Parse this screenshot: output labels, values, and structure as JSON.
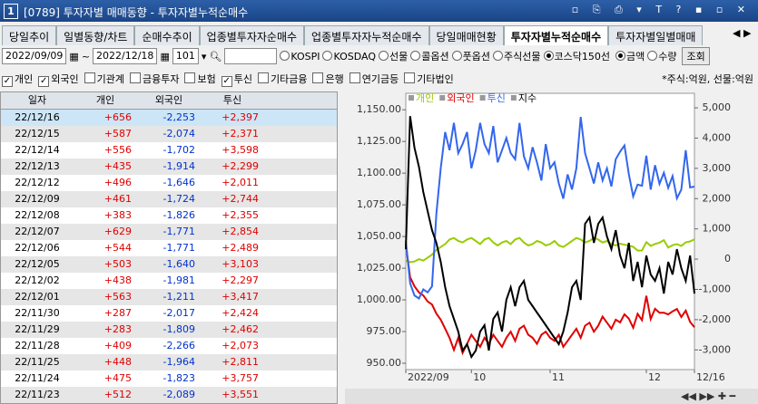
{
  "window": {
    "number": "1",
    "title": "[0789] 투자자별 매매동향 - 투자자별누적순매수"
  },
  "tabs": {
    "items": [
      "당일추이",
      "일별동향/차트",
      "순매수추이",
      "업종별투자자순매수",
      "업종별투자자누적순매수",
      "당일매매현황",
      "투자자별누적순매수",
      "투자자별일별매매"
    ],
    "active": 6
  },
  "controls": {
    "start_date": "2022/09/09",
    "separator": "~",
    "end_date": "2022/12/18",
    "code": "101",
    "markets": [
      "KOSPI",
      "KOSDAQ",
      "선물",
      "콜옵션",
      "풋옵션",
      "주식선물",
      "코스닥150선"
    ],
    "selected_market": 6,
    "units": [
      "금액",
      "수량"
    ],
    "selected_unit": 0,
    "search": "조회"
  },
  "filters": {
    "investors": [
      {
        "label": "개인",
        "checked": true
      },
      {
        "label": "외국인",
        "checked": true
      },
      {
        "label": "기관계",
        "checked": false
      },
      {
        "label": "금융투자",
        "checked": false
      },
      {
        "label": "보험",
        "checked": false
      },
      {
        "label": "투신",
        "checked": true
      },
      {
        "label": "기타금융",
        "checked": false
      },
      {
        "label": "은행",
        "checked": false
      },
      {
        "label": "연기금등",
        "checked": false
      },
      {
        "label": "기타법인",
        "checked": false
      }
    ],
    "note": "*주식:억원, 선물:억원"
  },
  "table": {
    "columns": [
      "일자",
      "개인",
      "외국인",
      "투신"
    ],
    "selected_row": 0,
    "rows": [
      [
        "22/12/16",
        "+656",
        "-2,253",
        "+2,397"
      ],
      [
        "22/12/15",
        "+587",
        "-2,074",
        "+2,371"
      ],
      [
        "22/12/14",
        "+556",
        "-1,702",
        "+3,598"
      ],
      [
        "22/12/13",
        "+435",
        "-1,914",
        "+2,299"
      ],
      [
        "22/12/12",
        "+496",
        "-1,646",
        "+2,011"
      ],
      [
        "22/12/09",
        "+461",
        "-1,724",
        "+2,744"
      ],
      [
        "22/12/08",
        "+383",
        "-1,826",
        "+2,355"
      ],
      [
        "22/12/07",
        "+629",
        "-1,771",
        "+2,854"
      ],
      [
        "22/12/06",
        "+544",
        "-1,771",
        "+2,489"
      ],
      [
        "22/12/05",
        "+503",
        "-1,640",
        "+3,103"
      ],
      [
        "22/12/02",
        "+438",
        "-1,981",
        "+2,297"
      ],
      [
        "22/12/01",
        "+563",
        "-1,211",
        "+3,417"
      ],
      [
        "22/11/30",
        "+287",
        "-2,017",
        "+2,424"
      ],
      [
        "22/11/29",
        "+283",
        "-1,809",
        "+2,462"
      ],
      [
        "22/11/28",
        "+409",
        "-2,266",
        "+2,073"
      ],
      [
        "22/11/25",
        "+448",
        "-1,964",
        "+2,811"
      ],
      [
        "22/11/24",
        "+475",
        "-1,823",
        "+3,757"
      ],
      [
        "22/11/23",
        "+512",
        "-2,089",
        "+3,551"
      ]
    ]
  },
  "chart_data": {
    "type": "line",
    "legend": "top-left",
    "grid": false,
    "categories": [
      "2022/09",
      null,
      null,
      null,
      null,
      null,
      null,
      null,
      null,
      null,
      null,
      null,
      null,
      null,
      null,
      "10",
      null,
      null,
      null,
      null,
      null,
      null,
      null,
      null,
      null,
      null,
      null,
      null,
      null,
      null,
      null,
      null,
      null,
      "11",
      null,
      null,
      null,
      null,
      null,
      null,
      null,
      null,
      null,
      null,
      null,
      null,
      null,
      null,
      null,
      null,
      null,
      null,
      null,
      null,
      null,
      "12",
      null,
      null,
      null,
      null,
      null,
      null,
      null,
      null,
      null,
      null,
      "12/16"
    ],
    "series": [
      {
        "name": "개인",
        "color": "#99cc00",
        "axis": "y2",
        "values": [
          -50,
          -100,
          -80,
          0,
          -50,
          50,
          150,
          300,
          400,
          500,
          650,
          700,
          600,
          550,
          650,
          700,
          600,
          500,
          650,
          700,
          550,
          450,
          550,
          600,
          500,
          650,
          700,
          550,
          450,
          500,
          600,
          550,
          450,
          500,
          600,
          450,
          400,
          500,
          600,
          700,
          650,
          550,
          600,
          700,
          650,
          550,
          600,
          500,
          450,
          512,
          475,
          448,
          409,
          283,
          287,
          563,
          438,
          503,
          544,
          629,
          383,
          461,
          496,
          435,
          556,
          587,
          656
        ]
      },
      {
        "name": "외국인",
        "color": "#e00000",
        "axis": "y2",
        "values": [
          500,
          -600,
          -900,
          -1100,
          -1200,
          -1400,
          -1500,
          -1800,
          -2000,
          -2300,
          -2600,
          -3000,
          -2600,
          -3100,
          -2800,
          -2500,
          -2700,
          -2900,
          -2600,
          -2800,
          -2500,
          -2700,
          -2900,
          -2600,
          -2400,
          -2700,
          -2300,
          -2200,
          -2500,
          -2600,
          -2800,
          -2500,
          -2400,
          -2600,
          -2700,
          -2500,
          -2900,
          -2700,
          -2500,
          -2300,
          -2600,
          -2200,
          -2100,
          -2400,
          -2200,
          -1900,
          -2100,
          -2300,
          -2000,
          -2089,
          -1823,
          -1964,
          -2266,
          -1809,
          -2017,
          -1211,
          -1981,
          -1640,
          -1771,
          -1771,
          -1826,
          -1724,
          -1646,
          -1914,
          -1702,
          -2074,
          -2253
        ]
      },
      {
        "name": "투신",
        "color": "#3366ee",
        "axis": "y2",
        "values": [
          600,
          -800,
          -1200,
          -1300,
          -1000,
          -1100,
          -900,
          1500,
          3000,
          4200,
          3600,
          4500,
          3500,
          3800,
          4200,
          3000,
          3600,
          4500,
          3800,
          3500,
          4400,
          3200,
          3600,
          4000,
          3500,
          3300,
          4500,
          3400,
          3000,
          3700,
          3200,
          2600,
          3800,
          3000,
          3200,
          2500,
          2000,
          2800,
          2300,
          3000,
          4700,
          3500,
          3000,
          2500,
          3200,
          2600,
          3000,
          2400,
          3300,
          3551,
          3757,
          2811,
          2073,
          2462,
          2424,
          3417,
          2297,
          3103,
          2489,
          2854,
          2355,
          2744,
          2011,
          2299,
          3598,
          2371,
          2397
        ]
      },
      {
        "name": "지수",
        "color": "#000000",
        "axis": "y",
        "values": [
          1040,
          1145,
          1120,
          1105,
          1085,
          1070,
          1055,
          1045,
          1030,
          1010,
          995,
          985,
          975,
          960,
          965,
          955,
          960,
          975,
          980,
          960,
          985,
          990,
          975,
          1000,
          1010,
          995,
          1010,
          1015,
          1000,
          995,
          990,
          985,
          980,
          975,
          970,
          965,
          975,
          990,
          1010,
          1015,
          1000,
          1060,
          1065,
          1045,
          1060,
          1065,
          1050,
          1040,
          1055,
          1035,
          1025,
          1045,
          1015,
          1030,
          1010,
          1035,
          1020,
          1015,
          1025,
          1005,
          1030,
          1020,
          1040,
          1025,
          1015,
          1035,
          1005
        ]
      }
    ],
    "ylim": [
      945,
      1163
    ],
    "yticks": [
      {
        "value": 950,
        "label": "950.00"
      },
      {
        "value": 975,
        "label": "975.00"
      },
      {
        "value": 1000,
        "label": "1,000.00"
      },
      {
        "value": 1025,
        "label": "1,025.00"
      },
      {
        "value": 1050,
        "label": "1,050.00"
      },
      {
        "value": 1075,
        "label": "1,075.00"
      },
      {
        "value": 1100,
        "label": "1,100.00"
      },
      {
        "value": 1125,
        "label": "1,125.00"
      },
      {
        "value": 1150,
        "label": "1,150.00"
      }
    ],
    "y2lim": [
      -3650,
      5480
    ],
    "y2ticks": [
      {
        "value": -3000,
        "label": "-3,000"
      },
      {
        "value": -2000,
        "label": "-2,000"
      },
      {
        "value": -1000,
        "label": "-1,000"
      },
      0,
      {
        "value": 1000,
        "label": "1,000"
      },
      {
        "value": 2000,
        "label": "2,000"
      },
      {
        "value": 3000,
        "label": "3,000"
      },
      {
        "value": 4000,
        "label": "4,000"
      },
      {
        "value": 5000,
        "label": "5,000"
      }
    ]
  }
}
